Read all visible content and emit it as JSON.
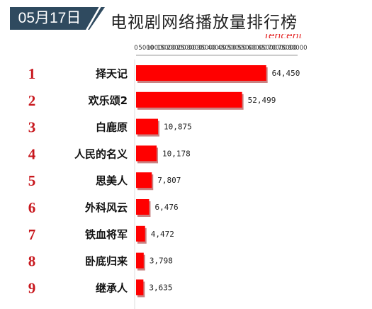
{
  "header": {
    "date": "05月17日",
    "title": "电视剧网络播放量排行榜"
  },
  "chart_data": {
    "type": "bar",
    "orientation": "horizontal",
    "title": "电视剧网络播放量排行榜",
    "xlabel": "",
    "ylabel": "",
    "xlim": [
      0,
      80000
    ],
    "ticks": [
      0,
      5000,
      10000,
      15000,
      20000,
      25000,
      30000,
      35000,
      40000,
      45000,
      50000,
      55000,
      60000,
      65000,
      70000,
      75000,
      80000
    ],
    "tick_labels": [
      "0",
      "5000",
      "10000",
      "15000",
      "20000",
      "25000",
      "30000",
      "35000",
      "40000",
      "45000",
      "50000",
      "55000",
      "60000",
      "65000",
      "70000",
      "75000",
      "80000"
    ],
    "grid": false,
    "legend": "none",
    "bar_color": "#ff0000",
    "rank_color": "#c8171d",
    "ranks": [
      "1",
      "2",
      "3",
      "4",
      "5",
      "6",
      "7",
      "8",
      "9"
    ],
    "categories": [
      "择天记",
      "欢乐颂2",
      "白鹿原",
      "人民的名义",
      "思美人",
      "外科风云",
      "铁血将军",
      "卧底归来",
      "继承人"
    ],
    "values": [
      64450,
      52499,
      10875,
      10178,
      7807,
      6476,
      4472,
      3798,
      3635
    ],
    "value_labels": [
      "64,450",
      "52,499",
      "10,875",
      "10,178",
      "7,807",
      "6,476",
      "4,472",
      "3,798",
      "3,635"
    ]
  }
}
